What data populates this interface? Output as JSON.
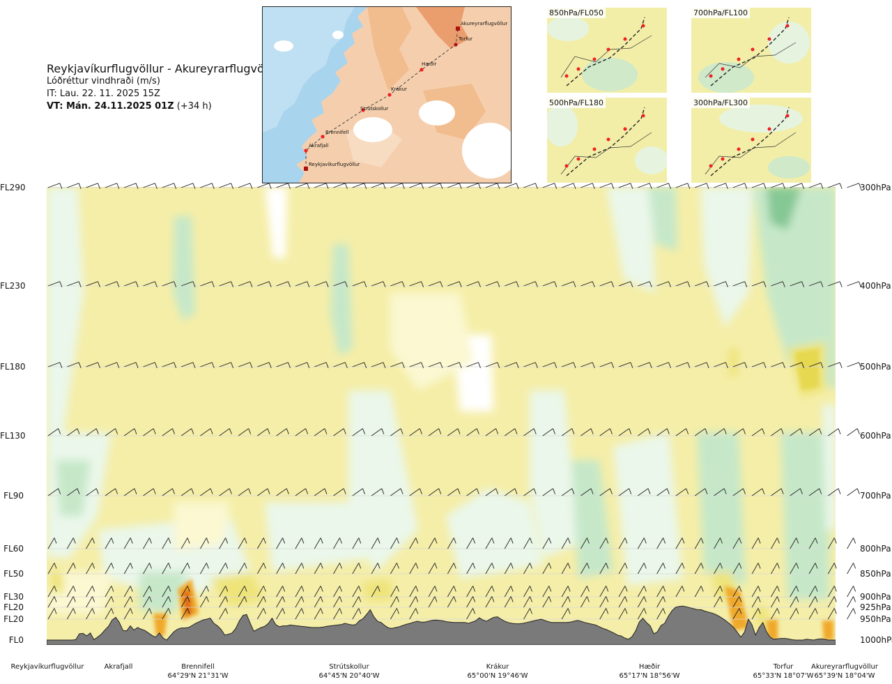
{
  "header": {
    "title": "Reykjavíkurflugvöllur - Akureyrarflugvöllur",
    "subtitle": "Lóðréttur vindhraði (m/s)",
    "issue_time": "IT: Lau. 22. 11. 2025 15Z",
    "valid_prefix": "VT: Mán. 24.11.2025 01Z",
    "valid_offset": "(+34 h)"
  },
  "route_map": {
    "points": [
      {
        "name": "Akureyrarflugvöllur"
      },
      {
        "name": "Torfur"
      },
      {
        "name": "Hæðir"
      },
      {
        "name": "Krákur"
      },
      {
        "name": "Strútskollur"
      },
      {
        "name": "Brennifell"
      },
      {
        "name": "Akrafjall"
      },
      {
        "name": "Reykjavíkurflugvöllur"
      }
    ]
  },
  "inset_maps": [
    {
      "label": "850hPa/FL050"
    },
    {
      "label": "700hPa/FL100"
    },
    {
      "label": "500hPa/FL180"
    },
    {
      "label": "300hPa/FL300"
    }
  ],
  "chart_data": {
    "type": "heatmap",
    "title": "Reykjavíkurflugvöllur - Akureyrarflugvöllur",
    "variable": "Lóðréttur vindhraði (m/s)",
    "y_left_levels": [
      "FL290",
      "FL230",
      "FL180",
      "FL130",
      "FL90",
      "FL60",
      "FL50",
      "FL30",
      "FL20",
      "FL20",
      "FL0"
    ],
    "y_right_levels": [
      "300hPa",
      "400hPa",
      "500hPa",
      "600hPa",
      "700hPa",
      "800hPa",
      "850hPa",
      "900hPa",
      "925hPa",
      "950hPa",
      "1000hPa"
    ],
    "pressure_hpa": [
      300,
      400,
      500,
      600,
      700,
      800,
      850,
      900,
      925,
      950,
      1000
    ],
    "x_locations": [
      {
        "name": "Reykjavíkurflugvöllur",
        "coord": ""
      },
      {
        "name": "Akrafjall",
        "coord": ""
      },
      {
        "name": "Brennifell",
        "coord": "64°29'N 21°31'W"
      },
      {
        "name": "Strútskollur",
        "coord": "64°45'N 20°40'W"
      },
      {
        "name": "Krákur",
        "coord": "65°00'N 19°46'W"
      },
      {
        "name": "Hæðir",
        "coord": "65°17'N 18°56'W"
      },
      {
        "name": "Torfur",
        "coord": "65°33'N 18°07'W"
      },
      {
        "name": "Akureyrarflugvöllur",
        "coord": "65°39'N 18°04'W"
      }
    ],
    "terrain_hpa": [
      1000,
      1000,
      1000,
      1000,
      1000,
      1000,
      1000,
      1000,
      999,
      985,
      984,
      990,
      983,
      999,
      993,
      986,
      976,
      967,
      952,
      946,
      958,
      977,
      978,
      966,
      976,
      970,
      974,
      977,
      983,
      989,
      993,
      983,
      995,
      1000,
      990,
      980,
      974,
      971,
      971,
      970,
      965,
      960,
      956,
      952,
      950,
      948,
      960,
      966,
      975,
      988,
      986,
      983,
      972,
      954,
      942,
      940,
      960,
      979,
      974,
      970,
      967,
      960,
      948,
      963,
      968,
      966,
      966,
      964,
      965,
      966,
      967,
      968,
      969,
      970,
      970,
      970,
      969,
      967,
      966,
      965,
      964,
      963,
      960,
      962,
      964,
      963,
      954,
      949,
      940,
      930,
      945,
      955,
      958,
      965,
      971,
      972,
      970,
      968,
      965,
      962,
      960,
      957,
      955,
      957,
      957,
      955,
      953,
      952,
      953,
      954,
      956,
      957,
      958,
      958,
      958,
      958,
      960,
      957,
      954,
      947,
      952,
      955,
      950,
      946,
      945,
      950,
      955,
      958,
      960,
      961,
      961,
      960,
      958,
      956,
      954,
      952,
      950,
      953,
      956,
      958,
      958,
      958,
      958,
      958,
      957,
      955,
      953,
      955,
      958,
      960,
      962,
      964,
      968,
      972,
      975,
      979,
      983,
      988,
      990,
      995,
      998,
      992,
      978,
      957,
      948,
      958,
      966,
      985,
      980,
      965,
      960,
      944,
      932,
      925,
      923,
      922,
      924,
      926,
      928,
      930,
      930,
      933,
      935,
      937,
      940,
      944,
      949,
      955,
      962,
      970,
      982,
      993,
      980,
      950,
      963,
      988,
      970,
      958,
      980,
      993,
      998,
      997,
      996,
      996,
      997,
      999,
      1000,
      1000,
      1000,
      998,
      999,
      1000,
      998,
      997,
      998,
      1000,
      1000,
      1000
    ],
    "colorscale": [
      "#3e9a50",
      "#86c895",
      "#c6e8c9",
      "#eaf7ea",
      "#ffffff",
      "#fbf8d2",
      "#f5eea8",
      "#eee47a",
      "#e6d850",
      "#f0a82a",
      "#e06a14",
      "#c23a10"
    ],
    "wind_barbs": true,
    "grid": true
  }
}
